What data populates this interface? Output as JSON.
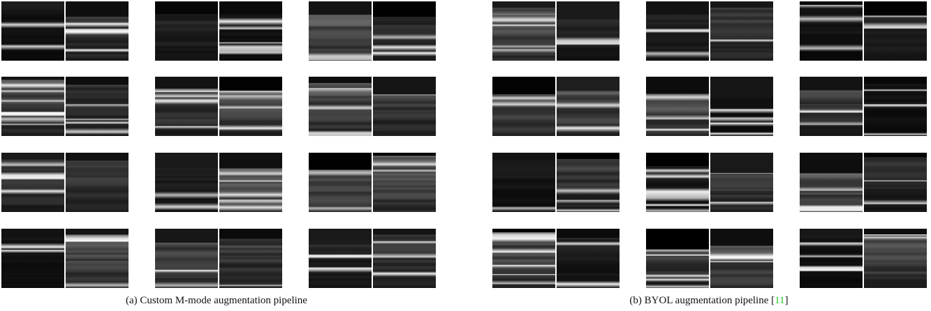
{
  "captions": [
    {
      "text": "(a) Custom M-mode augmentation pipeline"
    },
    {
      "text": "(b) BYOL augmentation pipeline [",
      "citation": "11",
      "suffix": "]"
    }
  ]
}
